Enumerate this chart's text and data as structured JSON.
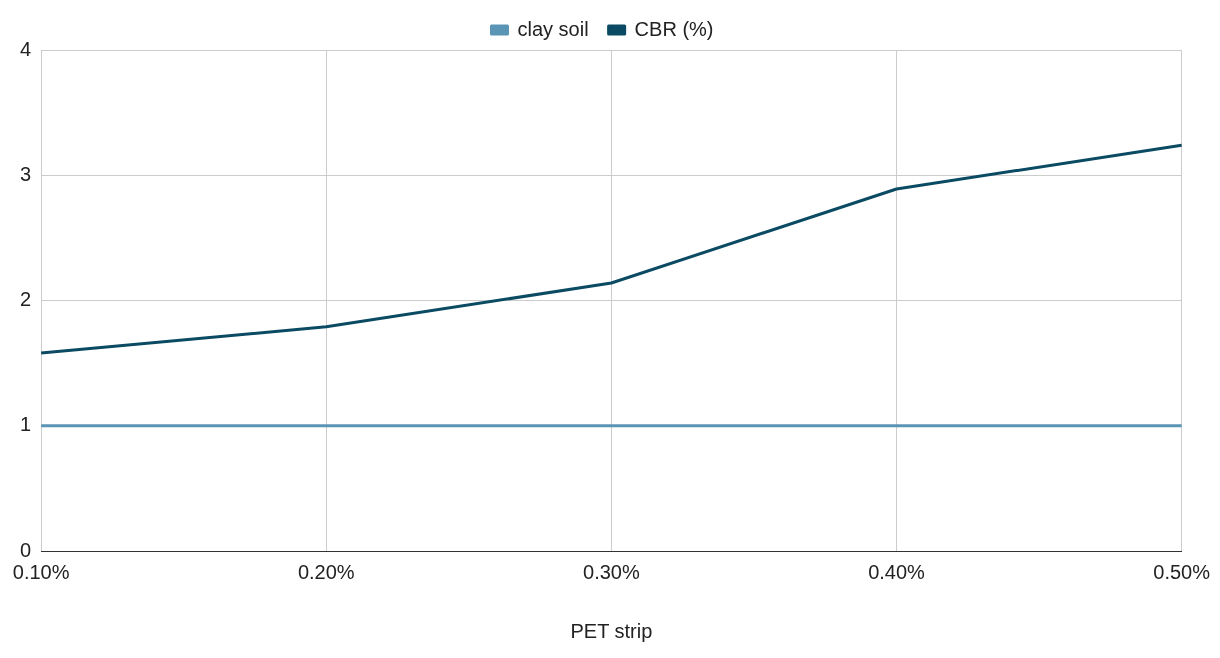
{
  "chart_data": {
    "type": "line",
    "xlabel": "PET strip",
    "categories": [
      "0.10%",
      "0.20%",
      "0.30%",
      "0.40%",
      "0.50%"
    ],
    "series": [
      {
        "name": "clay soil",
        "color": "#5b95b5",
        "values": [
          1,
          1,
          1,
          1,
          1
        ]
      },
      {
        "name": "CBR (%)",
        "color": "#0b4a63",
        "values": [
          1.58,
          1.79,
          2.14,
          2.89,
          3.24
        ]
      }
    ],
    "ylim": [
      0,
      4
    ],
    "yticks": [
      0,
      1,
      2,
      3,
      4
    ],
    "grid": true,
    "legend": "top",
    "marker": "none",
    "line_style": "solid"
  }
}
